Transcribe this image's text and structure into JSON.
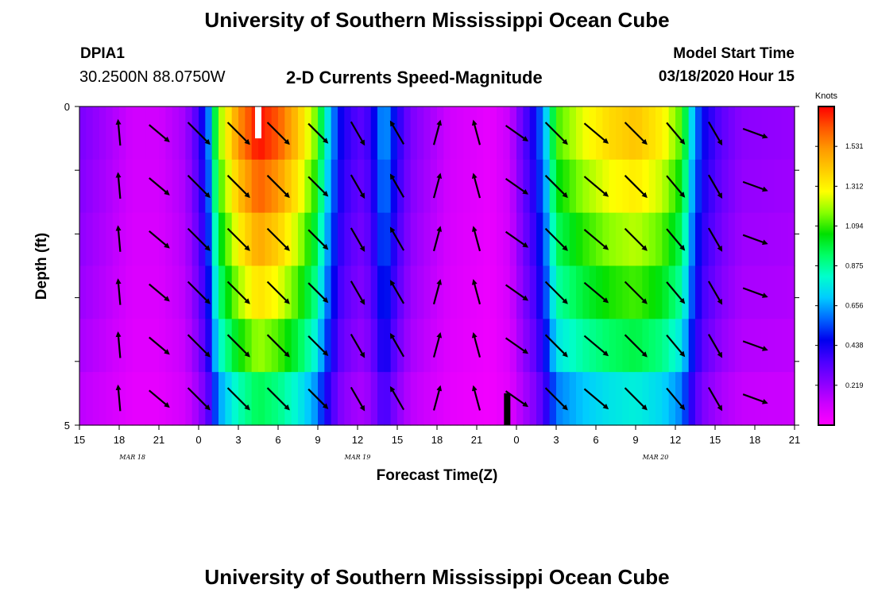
{
  "header": {
    "title": "University of Southern Mississippi Ocean Cube",
    "station_id": "DPIA1",
    "location": "30.2500N 88.0750W",
    "chart_title": "2-D Currents Speed-Magnitude",
    "model_start_label": "Model Start Time",
    "model_start_value": "03/18/2020 Hour 15",
    "footer_title": "University of Southern Mississippi Ocean Cube"
  },
  "chart_data": {
    "type": "heatmap",
    "title": "2-D Currents Speed-Magnitude",
    "xlabel": "Forecast Time(Z)",
    "ylabel": "Depth (ft)",
    "x_tick_labels": [
      "15",
      "18",
      "21",
      "0",
      "3",
      "6",
      "9",
      "12",
      "15",
      "18",
      "21",
      "0",
      "3",
      "6",
      "9",
      "12",
      "15",
      "18",
      "21"
    ],
    "x_hours_range": [
      0,
      54
    ],
    "date_labels": [
      {
        "text": "MAR 18",
        "hour": 4
      },
      {
        "text": "MAR 19",
        "hour": 21
      },
      {
        "text": "MAR 20",
        "hour": 43.5
      }
    ],
    "y_tick_labels": [
      "0",
      "5"
    ],
    "ylim": [
      0,
      5
    ],
    "depth_levels": 5,
    "colorbar": {
      "unit": "Knots",
      "min": 0,
      "max": 1.75,
      "tick_values": [
        "1.531",
        "1.312",
        "1.094",
        "0.875",
        "0.656",
        "0.438",
        "0.219"
      ],
      "colors": [
        "#ff00ff",
        "#cc00ff",
        "#8a00ff",
        "#4b00ff",
        "#0000ee",
        "#0066ff",
        "#00ccff",
        "#00ffcc",
        "#00ff66",
        "#00e000",
        "#88ff00",
        "#ffff00",
        "#ffcc00",
        "#ff9900",
        "#ff5500",
        "#ff0000"
      ]
    },
    "speed_profile": [
      {
        "h": 0,
        "s": 0.25
      },
      {
        "h": 2,
        "s": 0.18
      },
      {
        "h": 4,
        "s": 0.1
      },
      {
        "h": 6,
        "s": 0.1
      },
      {
        "h": 8,
        "s": 0.18
      },
      {
        "h": 9,
        "s": 0.35
      },
      {
        "h": 9.7,
        "s": 0.55
      },
      {
        "h": 10.5,
        "s": 1.1
      },
      {
        "h": 12,
        "s": 1.45
      },
      {
        "h": 13.5,
        "s": 1.65
      },
      {
        "h": 15,
        "s": 1.55
      },
      {
        "h": 16.5,
        "s": 1.35
      },
      {
        "h": 17.8,
        "s": 1.1
      },
      {
        "h": 18.8,
        "s": 0.7
      },
      {
        "h": 19.6,
        "s": 0.45
      },
      {
        "h": 20.5,
        "s": 0.35
      },
      {
        "h": 21.5,
        "s": 0.3
      },
      {
        "h": 22.3,
        "s": 0.45
      },
      {
        "h": 23,
        "s": 0.65
      },
      {
        "h": 24,
        "s": 0.4
      },
      {
        "h": 25,
        "s": 0.25
      },
      {
        "h": 28,
        "s": 0.1
      },
      {
        "h": 31,
        "s": 0.05
      },
      {
        "h": 32.5,
        "s": 0.12
      },
      {
        "h": 33.5,
        "s": 0.3
      },
      {
        "h": 34.5,
        "s": 0.45
      },
      {
        "h": 35.3,
        "s": 0.7
      },
      {
        "h": 36,
        "s": 1.05
      },
      {
        "h": 38,
        "s": 1.2
      },
      {
        "h": 40,
        "s": 1.3
      },
      {
        "h": 42,
        "s": 1.35
      },
      {
        "h": 44,
        "s": 1.25
      },
      {
        "h": 45.5,
        "s": 1.05
      },
      {
        "h": 46.2,
        "s": 0.7
      },
      {
        "h": 47,
        "s": 0.45
      },
      {
        "h": 48.5,
        "s": 0.3
      },
      {
        "h": 50,
        "s": 0.22
      },
      {
        "h": 54,
        "s": 0.2
      }
    ],
    "depth_factors": [
      1.05,
      0.98,
      0.9,
      0.82,
      0.72,
      0.58
    ],
    "vector_times": [
      3,
      6,
      9,
      12,
      15,
      18,
      21,
      24,
      27,
      30,
      33,
      36,
      39,
      42,
      45,
      48,
      51
    ],
    "vector_angles_deg": [
      -95,
      40,
      45,
      45,
      45,
      45,
      60,
      -120,
      -75,
      -105,
      35,
      45,
      40,
      45,
      50,
      60,
      20
    ],
    "vector_speeds": [
      0.2,
      0.25,
      1.0,
      1.6,
      1.2,
      0.45,
      0.35,
      0.3,
      0.1,
      0.1,
      0.35,
      1.1,
      1.3,
      1.3,
      0.5,
      0.3,
      0.2
    ],
    "markers": [
      {
        "hour": 13.5,
        "depth_top": 0,
        "depth_bottom": 0.5,
        "color": "#ffffff"
      },
      {
        "hour": 32.3,
        "depth_top": 4.5,
        "depth_bottom": 5,
        "color": "#000000"
      }
    ]
  }
}
